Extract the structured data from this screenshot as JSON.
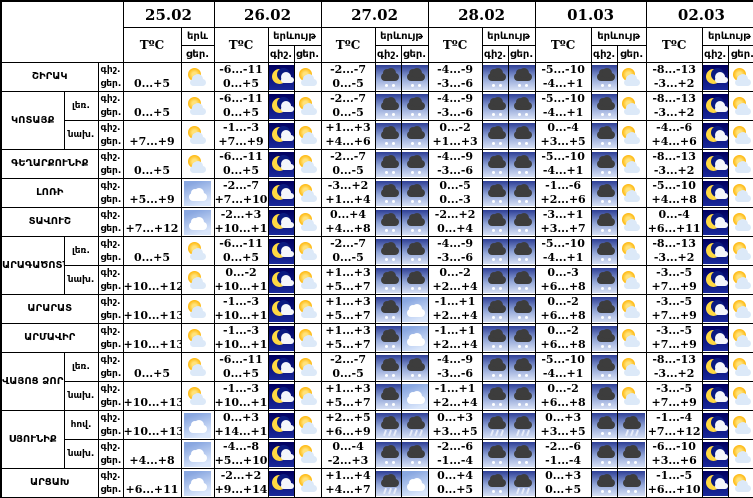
{
  "header": {
    "dates": [
      "25.02",
      "26.02",
      "27.02",
      "28.02",
      "01.03",
      "02.03"
    ],
    "temp_label": "TºC",
    "phenomenon_label": "երևույթ",
    "phenomenon_short": "երև",
    "night_label": "գիշ.",
    "day_label": "ցեր."
  },
  "icon_colors": {
    "sun": "#ffb300",
    "moon": "#ffd943",
    "night_sky": "#000060",
    "precip_sky": "#2e3f96",
    "dark_cloud": "#3d3d3d",
    "white_cloud": "#ffffff"
  },
  "rows": [
    {
      "region": "ՇԻՐԱԿ",
      "span": 1,
      "sub": null,
      "cells": [
        {
          "night_t": "",
          "day_t": "0...+5",
          "night_icon": null,
          "day_icon": "sun-cloud"
        },
        {
          "night_t": "-6...-11",
          "day_t": "0...+5",
          "night_icon": "moon-cloud",
          "day_icon": "sun-cloud"
        },
        {
          "night_t": "-2...-7",
          "day_t": "0...-5",
          "night_icon": "snow",
          "day_icon": "snow"
        },
        {
          "night_t": "-4...-9",
          "day_t": "-3...-6",
          "night_icon": "snow",
          "day_icon": "snow"
        },
        {
          "night_t": "-5...-10",
          "day_t": "-4...+1",
          "night_icon": "snow",
          "day_icon": "sun-cloud"
        },
        {
          "night_t": "-8...-13",
          "day_t": "-3...+2",
          "night_icon": "moon-cloud",
          "day_icon": "sun-cloud"
        }
      ]
    },
    {
      "region": "ԿՈՏԱՅՔ",
      "span": 2,
      "sub": "լեռ.",
      "cells": [
        {
          "night_t": "",
          "day_t": "0...+5",
          "night_icon": null,
          "day_icon": "sun-cloud"
        },
        {
          "night_t": "-6...-11",
          "day_t": "0...+5",
          "night_icon": "moon-cloud",
          "day_icon": "sun-cloud"
        },
        {
          "night_t": "-2...-7",
          "day_t": "0...-5",
          "night_icon": "snow",
          "day_icon": "snow"
        },
        {
          "night_t": "-4...-9",
          "day_t": "-3...-6",
          "night_icon": "snow",
          "day_icon": "snow"
        },
        {
          "night_t": "-5...-10",
          "day_t": "-4...+1",
          "night_icon": "snow",
          "day_icon": "sun-cloud"
        },
        {
          "night_t": "-8...-13",
          "day_t": "-3...+2",
          "night_icon": "moon-cloud",
          "day_icon": "sun-cloud"
        }
      ]
    },
    {
      "region": null,
      "span": 0,
      "sub": "նախ.",
      "cells": [
        {
          "night_t": "",
          "day_t": "+7...+9",
          "night_icon": null,
          "day_icon": "sun-cloud"
        },
        {
          "night_t": "-1...-3",
          "day_t": "+7...+9",
          "night_icon": "moon-cloud",
          "day_icon": "sun-cloud"
        },
        {
          "night_t": "+1...+3",
          "day_t": "+4...+6",
          "night_icon": "snow",
          "day_icon": "snow"
        },
        {
          "night_t": "0...-2",
          "day_t": "+1...+3",
          "night_icon": "snow",
          "day_icon": "snow"
        },
        {
          "night_t": "0...-4",
          "day_t": "+3...+5",
          "night_icon": "snow",
          "day_icon": "sun-cloud"
        },
        {
          "night_t": "-4...-6",
          "day_t": "+4...+6",
          "night_icon": "moon-cloud",
          "day_icon": "sun-cloud"
        }
      ]
    },
    {
      "region": "ԳԵՂԱՐՔՈՒՆԻՔ",
      "span": 1,
      "sub": null,
      "cells": [
        {
          "night_t": "",
          "day_t": "0...+5",
          "night_icon": null,
          "day_icon": "sun-cloud"
        },
        {
          "night_t": "-6...-11",
          "day_t": "0...+5",
          "night_icon": "moon-cloud",
          "day_icon": "sun-cloud"
        },
        {
          "night_t": "-2...-7",
          "day_t": "0...-5",
          "night_icon": "snow",
          "day_icon": "snow"
        },
        {
          "night_t": "-4...-9",
          "day_t": "-3...-6",
          "night_icon": "snow",
          "day_icon": "snow"
        },
        {
          "night_t": "-5...-10",
          "day_t": "-4...+1",
          "night_icon": "snow",
          "day_icon": "sun-cloud"
        },
        {
          "night_t": "-8...-13",
          "day_t": "-3...+2",
          "night_icon": "moon-cloud",
          "day_icon": "sun-cloud"
        }
      ]
    },
    {
      "region": "ԼՈՌԻ",
      "span": 1,
      "sub": null,
      "cells": [
        {
          "night_t": "",
          "day_t": "+5...+9",
          "night_icon": null,
          "day_icon": "cloud"
        },
        {
          "night_t": "-2...-7",
          "day_t": "+7...+10",
          "night_icon": "moon-cloud",
          "day_icon": "sun-cloud"
        },
        {
          "night_t": "-3...+2",
          "day_t": "+1...+4",
          "night_icon": "snow",
          "day_icon": "snow"
        },
        {
          "night_t": "0...-5",
          "day_t": "0...-3",
          "night_icon": "snow",
          "day_icon": "snow"
        },
        {
          "night_t": "-1...-6",
          "day_t": "+2...+6",
          "night_icon": "snow",
          "day_icon": "sun-cloud"
        },
        {
          "night_t": "-5...-10",
          "day_t": "+4...+8",
          "night_icon": "moon-cloud",
          "day_icon": "sun-cloud"
        }
      ]
    },
    {
      "region": "ՏԱՎՈՒՇ",
      "span": 1,
      "sub": null,
      "cells": [
        {
          "night_t": "",
          "day_t": "+7...+12",
          "night_icon": null,
          "day_icon": "cloud"
        },
        {
          "night_t": "-2...+3",
          "day_t": "+10...+15",
          "night_icon": "moon-cloud",
          "day_icon": "sun-cloud"
        },
        {
          "night_t": "0...+4",
          "day_t": "+4...+8",
          "night_icon": "snow",
          "day_icon": "snow"
        },
        {
          "night_t": "-2...+2",
          "day_t": "0...+4",
          "night_icon": "snow",
          "day_icon": "snow"
        },
        {
          "night_t": "-3...+1",
          "day_t": "+3...+7",
          "night_icon": "snow",
          "day_icon": "sun-cloud"
        },
        {
          "night_t": "0...-4",
          "day_t": "+6...+11",
          "night_icon": "moon-cloud",
          "day_icon": "sun-cloud"
        }
      ]
    },
    {
      "region": "ԱՐԱԳԱԾՈՏՆ",
      "span": 2,
      "sub": "լեռ.",
      "cells": [
        {
          "night_t": "",
          "day_t": "0...+5",
          "night_icon": null,
          "day_icon": "sun-cloud"
        },
        {
          "night_t": "-6...-11",
          "day_t": "0...+5",
          "night_icon": "moon-cloud",
          "day_icon": "sun-cloud"
        },
        {
          "night_t": "-2...-7",
          "day_t": "0...-5",
          "night_icon": "snow",
          "day_icon": "snow"
        },
        {
          "night_t": "-4...-9",
          "day_t": "-3...-6",
          "night_icon": "snow",
          "day_icon": "snow"
        },
        {
          "night_t": "-5...-10",
          "day_t": "-4...+1",
          "night_icon": "snow",
          "day_icon": "sun-cloud"
        },
        {
          "night_t": "-8...-13",
          "day_t": "-3...+2",
          "night_icon": "moon-cloud",
          "day_icon": "sun-cloud"
        }
      ]
    },
    {
      "region": null,
      "span": 0,
      "sub": "նախ.",
      "cells": [
        {
          "night_t": "",
          "day_t": "+10...+12",
          "night_icon": null,
          "day_icon": "sun-cloud"
        },
        {
          "night_t": "0...-2",
          "day_t": "+10...+12",
          "night_icon": "moon-cloud",
          "day_icon": "sun-cloud"
        },
        {
          "night_t": "+1...+3",
          "day_t": "+5...+7",
          "night_icon": "snow",
          "day_icon": "snow"
        },
        {
          "night_t": "0...-2",
          "day_t": "+2...+4",
          "night_icon": "snow",
          "day_icon": "snow"
        },
        {
          "night_t": "0...-3",
          "day_t": "+6...+8",
          "night_icon": "snow",
          "day_icon": "sun-cloud"
        },
        {
          "night_t": "-3...-5",
          "day_t": "+7...+9",
          "night_icon": "moon-cloud",
          "day_icon": "sun-cloud"
        }
      ]
    },
    {
      "region": "ԱՐԱՐԱՏ",
      "span": 1,
      "sub": null,
      "cells": [
        {
          "night_t": "",
          "day_t": "+10...+13",
          "night_icon": null,
          "day_icon": "sun-cloud"
        },
        {
          "night_t": "-1...-3",
          "day_t": "+10...+13",
          "night_icon": "moon-cloud",
          "day_icon": "sun-cloud"
        },
        {
          "night_t": "+1...+3",
          "day_t": "+5...+7",
          "night_icon": "snow",
          "day_icon": "cloud"
        },
        {
          "night_t": "-1...+1",
          "day_t": "+2...+4",
          "night_icon": "snow",
          "day_icon": "snow"
        },
        {
          "night_t": "0...-2",
          "day_t": "+6...+8",
          "night_icon": "snow",
          "day_icon": "sun-cloud"
        },
        {
          "night_t": "-3...-5",
          "day_t": "+7...+9",
          "night_icon": "moon-cloud",
          "day_icon": "sun-cloud"
        }
      ]
    },
    {
      "region": "ԱՐՄԱՎԻՐ",
      "span": 1,
      "sub": null,
      "cells": [
        {
          "night_t": "",
          "day_t": "+10...+13",
          "night_icon": null,
          "day_icon": "sun-cloud"
        },
        {
          "night_t": "-1...-3",
          "day_t": "+10...+13",
          "night_icon": "moon-cloud",
          "day_icon": "sun-cloud"
        },
        {
          "night_t": "+1...+3",
          "day_t": "+5...+7",
          "night_icon": "snow",
          "day_icon": "cloud"
        },
        {
          "night_t": "-1...+1",
          "day_t": "+2...+4",
          "night_icon": "snow",
          "day_icon": "snow"
        },
        {
          "night_t": "0...-2",
          "day_t": "+6...+8",
          "night_icon": "snow",
          "day_icon": "sun-cloud"
        },
        {
          "night_t": "-3...-5",
          "day_t": "+7...+9",
          "night_icon": "moon-cloud",
          "day_icon": "sun-cloud"
        }
      ]
    },
    {
      "region": "ՎԱՅՈՑ ՁՈՐ",
      "span": 2,
      "sub": "լեռ.",
      "cells": [
        {
          "night_t": "",
          "day_t": "0...+5",
          "night_icon": null,
          "day_icon": "sun-cloud"
        },
        {
          "night_t": "-6...-11",
          "day_t": "0...+5",
          "night_icon": "moon-cloud",
          "day_icon": "sun-cloud"
        },
        {
          "night_t": "-2...-7",
          "day_t": "0...-5",
          "night_icon": "snow",
          "day_icon": "snow"
        },
        {
          "night_t": "-4...-9",
          "day_t": "-3...-6",
          "night_icon": "snow",
          "day_icon": "snow"
        },
        {
          "night_t": "-5...-10",
          "day_t": "-4...+1",
          "night_icon": "snow",
          "day_icon": "sun-cloud"
        },
        {
          "night_t": "-8...-13",
          "day_t": "-3...+2",
          "night_icon": "moon-cloud",
          "day_icon": "sun-cloud"
        }
      ]
    },
    {
      "region": null,
      "span": 0,
      "sub": "նախ.",
      "cells": [
        {
          "night_t": "",
          "day_t": "+10...+13",
          "night_icon": null,
          "day_icon": "sun-cloud"
        },
        {
          "night_t": "-1...-3",
          "day_t": "+10...+13",
          "night_icon": "moon-cloud",
          "day_icon": "sun-cloud"
        },
        {
          "night_t": "+1...+3",
          "day_t": "+5...+7",
          "night_icon": "snow",
          "day_icon": "cloud"
        },
        {
          "night_t": "-1...+1",
          "day_t": "+2...+4",
          "night_icon": "snow",
          "day_icon": "snow"
        },
        {
          "night_t": "0...-2",
          "day_t": "+6...+8",
          "night_icon": "snow",
          "day_icon": "sun-cloud"
        },
        {
          "night_t": "-3...-5",
          "day_t": "+7...+9",
          "night_icon": "moon-cloud",
          "day_icon": "sun-cloud"
        }
      ]
    },
    {
      "region": "ՍՅՈՒՆԻՔ",
      "span": 2,
      "sub": "հով.",
      "cells": [
        {
          "night_t": "",
          "day_t": "+10...+13",
          "night_icon": null,
          "day_icon": "cloud"
        },
        {
          "night_t": "0...+3",
          "day_t": "+14...+16",
          "night_icon": "moon-cloud",
          "day_icon": "sun-cloud"
        },
        {
          "night_t": "+2...+5",
          "day_t": "+6...+9",
          "night_icon": "rain",
          "day_icon": "rain"
        },
        {
          "night_t": "0...+3",
          "day_t": "+3...+5",
          "night_icon": "rain",
          "day_icon": "rain"
        },
        {
          "night_t": "0...+3",
          "day_t": "+3...+5",
          "night_icon": "snow",
          "day_icon": "rain"
        },
        {
          "night_t": "-1...-4",
          "day_t": "+7...+12",
          "night_icon": "moon-cloud",
          "day_icon": "sun-cloud"
        }
      ]
    },
    {
      "region": null,
      "span": 0,
      "sub": "նախ.",
      "cells": [
        {
          "night_t": "",
          "day_t": "+4...+8",
          "night_icon": null,
          "day_icon": "cloud"
        },
        {
          "night_t": "-4...-8",
          "day_t": "+5...+10",
          "night_icon": "moon-cloud",
          "day_icon": "sun-cloud"
        },
        {
          "night_t": "0...-4",
          "day_t": "-2...+3",
          "night_icon": "snow",
          "day_icon": "snow"
        },
        {
          "night_t": "-2...-6",
          "day_t": "-1...-4",
          "night_icon": "snow",
          "day_icon": "snow"
        },
        {
          "night_t": "-2...-6",
          "day_t": "-1...-4",
          "night_icon": "snow",
          "day_icon": "snow"
        },
        {
          "night_t": "-6...-10",
          "day_t": "+3...+6",
          "night_icon": "moon-cloud",
          "day_icon": "sun-cloud"
        }
      ]
    },
    {
      "region": "ԱՐՑԱԽ",
      "span": 1,
      "sub": null,
      "cells": [
        {
          "night_t": "",
          "day_t": "+6...+11",
          "night_icon": null,
          "day_icon": "cloud"
        },
        {
          "night_t": "-2...+2",
          "day_t": "+9...+14",
          "night_icon": "moon-cloud",
          "day_icon": "sun-cloud"
        },
        {
          "night_t": "+1...+4",
          "day_t": "+4...+7",
          "night_icon": "rain",
          "day_icon": "cloud"
        },
        {
          "night_t": "0...+4",
          "day_t": "0...+5",
          "night_icon": "snow",
          "day_icon": "rain"
        },
        {
          "night_t": "0...+3",
          "day_t": "0...+5",
          "night_icon": "snow",
          "day_icon": "snow"
        },
        {
          "night_t": "-1...-5",
          "day_t": "+6...+10",
          "night_icon": "moon-cloud",
          "day_icon": "sun-cloud"
        }
      ]
    }
  ]
}
